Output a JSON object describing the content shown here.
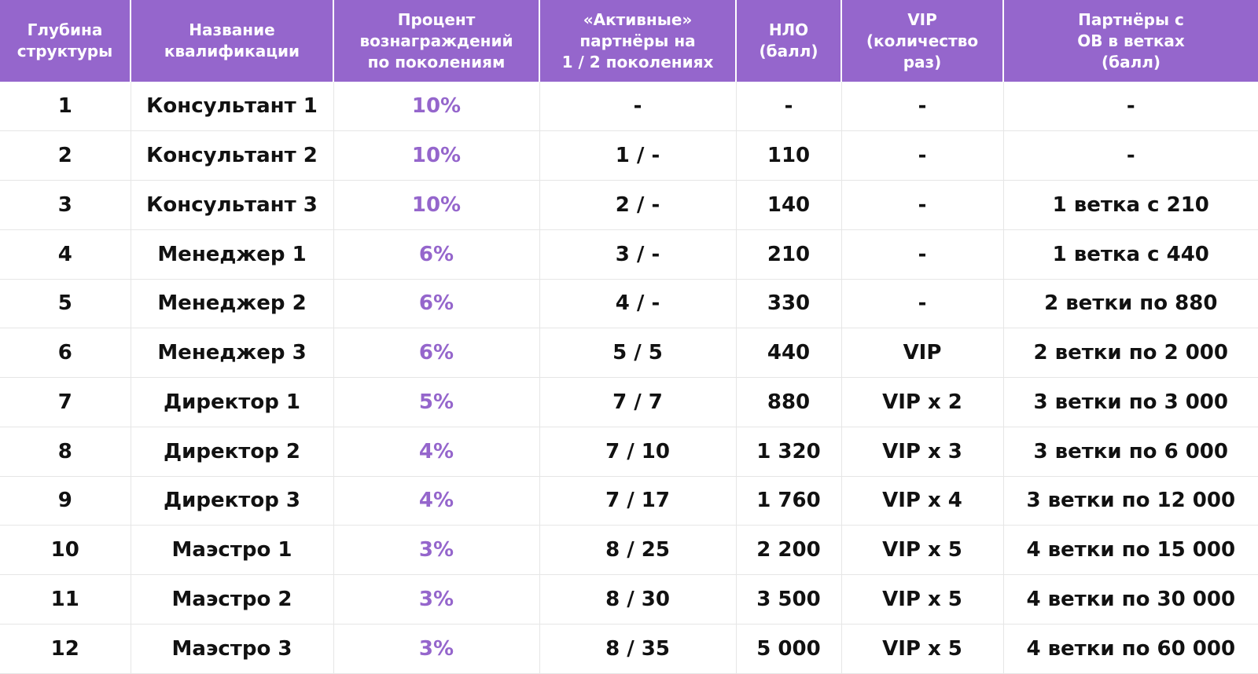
{
  "colors": {
    "header_bg": "#9566cc",
    "accent_text": "#9566cc",
    "body_text": "#111111"
  },
  "columns": [
    {
      "key": "depth",
      "label": "Глубина\nструктуры"
    },
    {
      "key": "name",
      "label": "Название\nквалификации"
    },
    {
      "key": "percent",
      "label": "Процент\nвознаграждений\nпо поколениям"
    },
    {
      "key": "active",
      "label": "«Активные»\nпартнёры на\n1 / 2 поколениях"
    },
    {
      "key": "nlo",
      "label": "НЛО\n(балл)"
    },
    {
      "key": "vip",
      "label": "VIP\n(количество\nраз)"
    },
    {
      "key": "branches",
      "label": "Партнёры с\nОВ в ветках\n(балл)"
    }
  ],
  "rows": [
    {
      "depth": "1",
      "name": "Консультант 1",
      "percent": "10%",
      "active": "-",
      "nlo": "-",
      "vip": "-",
      "branches": "-"
    },
    {
      "depth": "2",
      "name": "Консультант 2",
      "percent": "10%",
      "active": "1 / -",
      "nlo": "110",
      "vip": "-",
      "branches": "-"
    },
    {
      "depth": "3",
      "name": "Консультант 3",
      "percent": "10%",
      "active": "2 / -",
      "nlo": "140",
      "vip": "-",
      "branches": "1 ветка с 210"
    },
    {
      "depth": "4",
      "name": "Менеджер 1",
      "percent": "6%",
      "active": "3 / -",
      "nlo": "210",
      "vip": "-",
      "branches": "1 ветка с 440"
    },
    {
      "depth": "5",
      "name": "Менеджер 2",
      "percent": "6%",
      "active": "4 / -",
      "nlo": "330",
      "vip": "-",
      "branches": "2 ветки по 880"
    },
    {
      "depth": "6",
      "name": "Менеджер 3",
      "percent": "6%",
      "active": "5 / 5",
      "nlo": "440",
      "vip": "VIP",
      "branches": "2 ветки по 2 000"
    },
    {
      "depth": "7",
      "name": "Директор 1",
      "percent": "5%",
      "active": "7 / 7",
      "nlo": "880",
      "vip": "VIP x 2",
      "branches": "3 ветки по 3 000"
    },
    {
      "depth": "8",
      "name": "Директор 2",
      "percent": "4%",
      "active": "7 / 10",
      "nlo": "1 320",
      "vip": "VIP x 3",
      "branches": "3 ветки по 6 000"
    },
    {
      "depth": "9",
      "name": "Директор 3",
      "percent": "4%",
      "active": "7 / 17",
      "nlo": "1 760",
      "vip": "VIP x 4",
      "branches": "3 ветки по 12 000"
    },
    {
      "depth": "10",
      "name": "Маэстро 1",
      "percent": "3%",
      "active": "8 / 25",
      "nlo": "2 200",
      "vip": "VIP x 5",
      "branches": "4 ветки по 15 000"
    },
    {
      "depth": "11",
      "name": "Маэстро 2",
      "percent": "3%",
      "active": "8 / 30",
      "nlo": "3 500",
      "vip": "VIP x 5",
      "branches": "4 ветки по 30 000"
    },
    {
      "depth": "12",
      "name": "Маэстро 3",
      "percent": "3%",
      "active": "8 / 35",
      "nlo": "5 000",
      "vip": "VIP x 5",
      "branches": "4 ветки по 60 000"
    }
  ]
}
